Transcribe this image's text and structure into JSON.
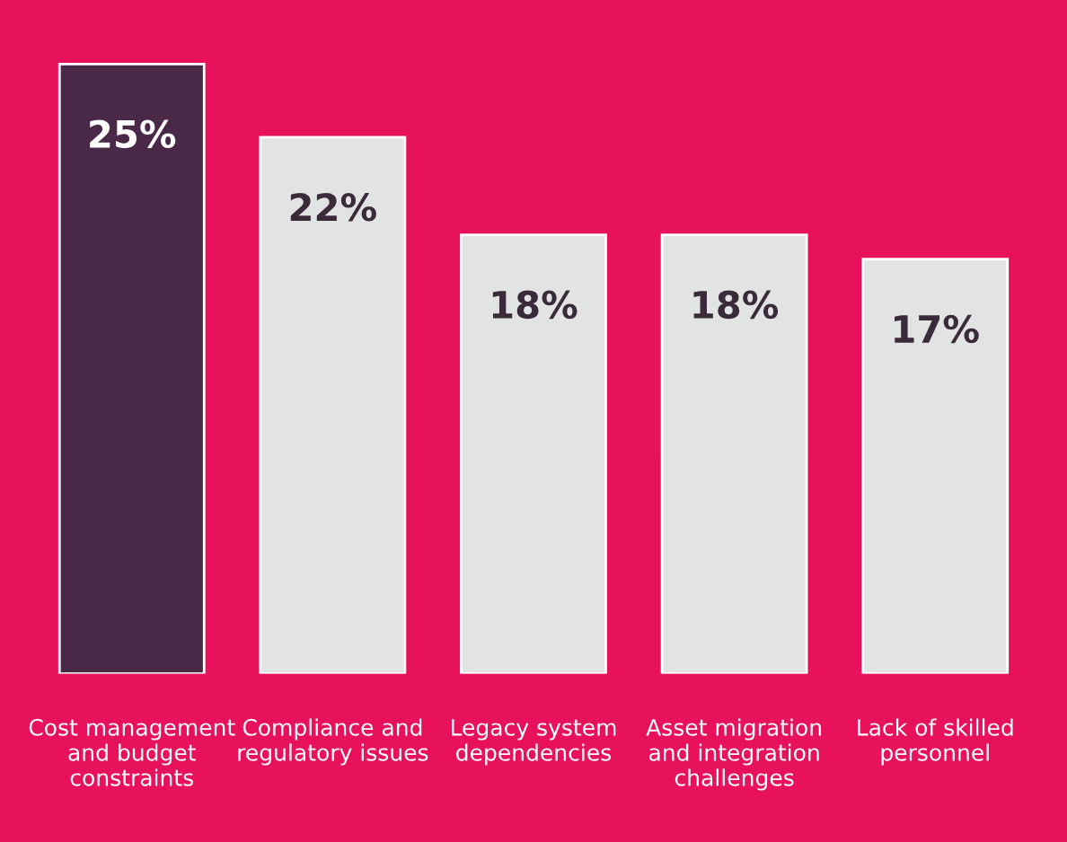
{
  "chart_data": {
    "type": "bar",
    "categories": [
      "Cost management\nand budget\nconstraints",
      "Compliance and\nregulatory issues",
      "Legacy system\ndependencies",
      "Asset migration\nand integration\nchallenges",
      "Lack of skilled\npersonnel"
    ],
    "values": [
      25,
      22,
      18,
      18,
      17
    ],
    "colors": [
      "#4a2848",
      "#e2e3e3",
      "#e2e3e3",
      "#e2e3e3",
      "#e2e3e3"
    ],
    "value_labels": [
      "25%",
      "22%",
      "18%",
      "18%",
      "17%"
    ],
    "grid": false,
    "legend": false
  }
}
